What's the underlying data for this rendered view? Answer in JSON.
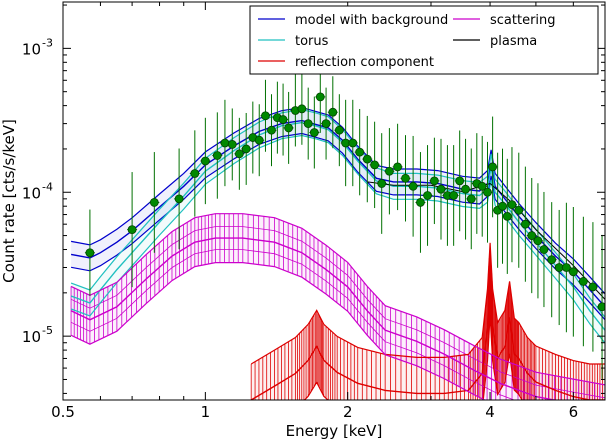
{
  "chart_data": {
    "type": "line",
    "xlabel": "Energy [keV]",
    "ylabel": "Count rate [cts/s/keV]",
    "x_scale": "log",
    "y_scale": "log",
    "xlim": [
      0.5,
      7.0
    ],
    "ylim": [
      3.6e-06,
      0.0021
    ],
    "x_ticks": [
      {
        "value": 0.5,
        "label": "0.5"
      },
      {
        "value": 1,
        "label": "1"
      },
      {
        "value": 2,
        "label": "2"
      },
      {
        "value": 4,
        "label": "4"
      },
      {
        "value": 6,
        "label": "6"
      }
    ],
    "y_ticks": [
      {
        "value": 1e-05,
        "base": "10",
        "exp": "-5"
      },
      {
        "value": 0.0001,
        "base": "10",
        "exp": "-4"
      },
      {
        "value": 0.001,
        "base": "10",
        "exp": "-3"
      }
    ],
    "legend": {
      "position": "top-right",
      "entries": [
        {
          "label": "model with background",
          "color": "#0000cc"
        },
        {
          "label": "torus",
          "color": "#20c0c0"
        },
        {
          "label": "reflection component",
          "color": "#dd0000"
        },
        {
          "label": "scattering",
          "color": "#cc00cc"
        },
        {
          "label": "plasma",
          "color": "#000000"
        }
      ]
    },
    "series": [
      {
        "name": "model with background",
        "color": "#0000cc",
        "x": [
          0.52,
          0.57,
          0.6,
          0.65,
          0.7,
          0.8,
          0.9,
          1.0,
          1.15,
          1.3,
          1.45,
          1.6,
          1.72,
          1.82,
          1.95,
          2.1,
          2.3,
          2.5,
          2.8,
          3.1,
          3.5,
          3.8,
          3.95,
          4.02,
          4.1,
          4.3,
          4.6,
          5.0,
          5.5,
          6.0,
          6.5,
          7.0
        ],
        "values": [
          3.7e-05,
          3.5e-05,
          3.8e-05,
          4.5e-05,
          5.4e-05,
          7.9e-05,
          0.00011,
          0.000155,
          0.00021,
          0.000265,
          0.0003,
          0.000315,
          0.000295,
          0.00028,
          0.00023,
          0.00017,
          0.000125,
          0.000118,
          0.000118,
          0.000115,
          0.000105,
          0.000102,
          0.000115,
          0.00016,
          0.00011,
          9e-05,
          6.8e-05,
          5e-05,
          3.6e-05,
          2.8e-05,
          2.1e-05,
          1.6e-05
        ]
      },
      {
        "name": "torus",
        "color": "#20c0c0",
        "x": [
          0.52,
          0.57,
          0.6,
          0.65,
          0.7,
          0.8,
          0.9,
          1.0,
          1.15,
          1.3,
          1.45,
          1.6,
          1.72,
          1.82,
          1.95,
          2.1,
          2.3,
          2.5,
          2.8,
          3.1,
          3.5,
          3.8,
          3.95,
          4.02,
          4.1,
          4.3,
          4.6,
          5.0,
          5.5,
          6.0,
          6.5,
          7.0
        ],
        "values": [
          1.9e-05,
          1.7e-05,
          2.1e-05,
          2.9e-05,
          3.8e-05,
          6.2e-05,
          9.4e-05,
          0.00014,
          0.000195,
          0.00025,
          0.00029,
          0.000305,
          0.000288,
          0.000272,
          0.000222,
          0.000165,
          0.00012,
          0.00011,
          0.00011,
          0.000107,
          9.8e-05,
          9.5e-05,
          0.000105,
          0.00015,
          0.0001,
          8.3e-05,
          6.2e-05,
          4.5e-05,
          3.1e-05,
          2.2e-05,
          1.5e-05,
          1.1e-05
        ]
      },
      {
        "name": "reflection component",
        "color": "#dd0000",
        "x": [
          1.25,
          1.4,
          1.55,
          1.65,
          1.72,
          1.78,
          1.9,
          2.1,
          2.4,
          2.8,
          3.2,
          3.6,
          3.85,
          3.95,
          4.0,
          4.05,
          4.15,
          4.3,
          4.4,
          4.5,
          4.6,
          4.8,
          5.0,
          5.5,
          6.0,
          6.5,
          7.0
        ],
        "values": [
          3.6e-06,
          4.5e-06,
          5.5e-06,
          6.8e-06,
          8.5e-06,
          6.8e-06,
          5.6e-06,
          4.7e-06,
          4.2e-06,
          4e-06,
          4e-06,
          4.2e-06,
          5.5e-06,
          1.2e-05,
          2.5e-05,
          1.2e-05,
          7e-06,
          8.5e-06,
          1.35e-05,
          7.5e-06,
          7e-06,
          5.5e-06,
          4.8e-06,
          4.2e-06,
          3.8e-06,
          3.6e-06,
          3.6e-06
        ]
      },
      {
        "name": "scattering",
        "color": "#cc00cc",
        "x": [
          0.52,
          0.57,
          0.65,
          0.75,
          0.85,
          0.95,
          1.05,
          1.2,
          1.4,
          1.6,
          1.8,
          2.0,
          2.2,
          2.4,
          2.8,
          3.2,
          3.7,
          4.2,
          5.0,
          6.0,
          7.0
        ],
        "values": [
          1.5e-05,
          1.3e-05,
          1.6e-05,
          2.5e-05,
          3.6e-05,
          4.5e-05,
          4.8e-05,
          4.8e-05,
          4.5e-05,
          3.8e-05,
          2.9e-05,
          2.2e-05,
          1.5e-05,
          1.1e-05,
          9.2e-06,
          7.5e-06,
          5.8e-06,
          4.7e-06,
          3.8e-06,
          3.4e-06,
          3.1e-06
        ]
      },
      {
        "name": "plasma",
        "color": "#000000",
        "x": [
          2.2,
          2.5,
          3.0,
          3.5,
          4.0,
          4.5,
          5.0,
          6.0,
          7.0
        ],
        "values": [
          0.000118,
          0.000112,
          0.000112,
          0.000101,
          0.000115,
          8.2e-05,
          5.5e-05,
          3.1e-05,
          1.8e-05
        ]
      }
    ],
    "data_points": {
      "color": "#007000",
      "x": [
        0.57,
        0.7,
        0.78,
        0.88,
        0.95,
        1.0,
        1.06,
        1.1,
        1.14,
        1.18,
        1.22,
        1.26,
        1.3,
        1.34,
        1.38,
        1.42,
        1.46,
        1.5,
        1.55,
        1.6,
        1.65,
        1.7,
        1.75,
        1.8,
        1.86,
        1.92,
        1.98,
        2.05,
        2.12,
        2.2,
        2.28,
        2.36,
        2.45,
        2.55,
        2.65,
        2.75,
        2.85,
        2.95,
        3.05,
        3.15,
        3.25,
        3.35,
        3.45,
        3.55,
        3.65,
        3.75,
        3.85,
        3.95,
        4.05,
        4.15,
        4.25,
        4.35,
        4.45,
        4.6,
        4.75,
        4.9,
        5.05,
        5.2,
        5.4,
        5.6,
        5.8,
        6.0,
        6.3,
        6.6,
        6.9
      ],
      "values": [
        3.8e-05,
        5.5e-05,
        8.5e-05,
        9e-05,
        0.000135,
        0.000165,
        0.00018,
        0.00022,
        0.000215,
        0.000185,
        0.0002,
        0.00024,
        0.00023,
        0.00034,
        0.00027,
        0.00033,
        0.00032,
        0.00028,
        0.00037,
        0.00038,
        0.0003,
        0.00026,
        0.00046,
        0.0003,
        0.00036,
        0.00027,
        0.00022,
        0.00022,
        0.00019,
        0.00017,
        0.000155,
        0.000115,
        0.00014,
        0.00015,
        0.000125,
        0.00011,
        8.5e-05,
        9.5e-05,
        0.00012,
        0.000105,
        9.5e-05,
        9.5e-05,
        0.00012,
        0.000105,
        9e-05,
        0.000115,
        0.00011,
        0.0001,
        0.00015,
        7.5e-05,
        8e-05,
        6.8e-05,
        8.2e-05,
        7.5e-05,
        6e-05,
        5e-05,
        4.6e-05,
        4e-05,
        3.4e-05,
        3e-05,
        3e-05,
        2.8e-05,
        2.4e-05,
        2.2e-05,
        1.6e-05
      ],
      "errors": [
        0.3,
        0.4,
        0.35,
        0.35,
        0.3,
        0.3,
        0.3,
        0.3,
        0.25,
        0.25,
        0.25,
        0.25,
        0.25,
        0.25,
        0.25,
        0.25,
        0.25,
        0.25,
        0.25,
        0.25,
        0.25,
        0.25,
        0.25,
        0.25,
        0.25,
        0.25,
        0.3,
        0.3,
        0.3,
        0.3,
        0.3,
        0.35,
        0.3,
        0.3,
        0.3,
        0.35,
        0.35,
        0.35,
        0.3,
        0.35,
        0.35,
        0.35,
        0.35,
        0.35,
        0.35,
        0.35,
        0.35,
        0.35,
        0.35,
        0.4,
        0.4,
        0.4,
        0.4,
        0.4,
        0.4,
        0.4,
        0.4,
        0.4,
        0.4,
        0.4,
        0.45,
        0.45,
        0.45,
        0.45,
        0.5
      ]
    }
  }
}
